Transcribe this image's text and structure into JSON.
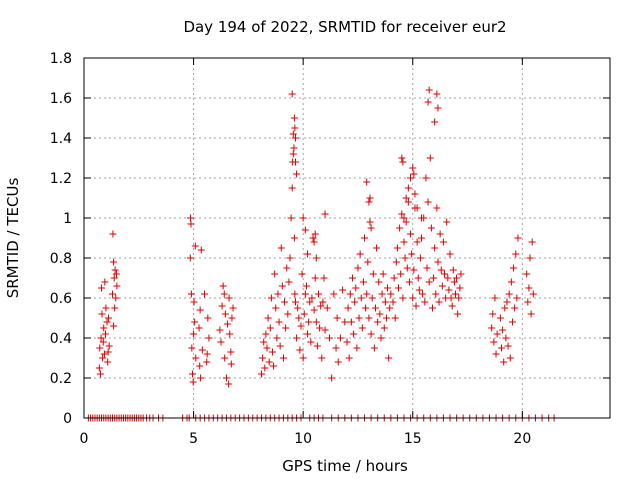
{
  "chart_data": {
    "type": "scatter",
    "title": "Day 194 of 2022, SRMTID for receiver eur2",
    "xlabel": "GPS time / hours",
    "ylabel": "SRMTID / TECUs",
    "xlim": [
      0,
      24
    ],
    "ylim": [
      0,
      1.8
    ],
    "xticks": [
      0,
      5,
      10,
      15,
      20
    ],
    "xtick_labels": [
      "0",
      "5",
      "10",
      "15",
      "20"
    ],
    "yticks": [
      0,
      0.2,
      0.4,
      0.6,
      0.8,
      1,
      1.2,
      1.4,
      1.6,
      1.8
    ],
    "ytick_labels": [
      "0",
      "0.2",
      "0.4",
      "0.6",
      "0.8",
      "1",
      "1.2",
      "1.4",
      "1.6",
      "1.8"
    ],
    "grid": true,
    "marker": "+",
    "color": "#e00000",
    "series": [
      {
        "name": "SRMTID",
        "x": [
          0.7,
          0.72,
          0.75,
          0.78,
          0.8,
          0.82,
          0.85,
          0.88,
          0.9,
          0.93,
          0.95,
          0.98,
          1.0,
          1.05,
          1.08,
          1.1,
          1.12,
          1.15,
          1.3,
          1.32,
          1.35,
          1.38,
          1.4,
          1.42,
          1.45,
          1.48,
          1.5,
          1.35,
          4.85,
          4.86,
          4.88,
          4.9,
          4.92,
          4.95,
          4.98,
          5.0,
          5.02,
          5.05,
          5.08,
          5.1,
          5.25,
          5.28,
          5.3,
          5.32,
          5.35,
          5.4,
          5.5,
          5.6,
          5.62,
          5.65,
          5.7,
          6.2,
          6.25,
          6.3,
          6.35,
          6.4,
          6.42,
          6.45,
          6.5,
          6.55,
          6.6,
          6.62,
          6.65,
          6.7,
          6.72,
          6.75,
          6.8,
          8.1,
          8.15,
          8.2,
          8.25,
          8.3,
          8.35,
          8.4,
          8.45,
          8.5,
          8.55,
          8.6,
          8.65,
          8.7,
          8.75,
          8.8,
          8.85,
          8.9,
          8.95,
          9.0,
          9.05,
          9.1,
          9.15,
          9.2,
          9.25,
          9.3,
          9.35,
          9.4,
          9.45,
          9.5,
          9.52,
          9.55,
          9.58,
          9.6,
          9.62,
          9.65,
          9.7,
          9.75,
          9.8,
          9.85,
          9.9,
          9.95,
          10.0,
          10.05,
          10.1,
          10.15,
          10.2,
          10.25,
          10.3,
          10.35,
          10.4,
          10.45,
          10.5,
          10.55,
          10.6,
          10.65,
          10.7,
          10.75,
          10.8,
          10.85,
          10.9,
          10.95,
          11.0,
          11.1,
          11.2,
          11.3,
          11.4,
          11.5,
          11.55,
          11.6,
          11.7,
          11.8,
          11.9,
          12.0,
          12.05,
          12.1,
          12.15,
          12.2,
          12.25,
          12.3,
          12.35,
          12.4,
          12.45,
          12.5,
          12.55,
          12.6,
          12.65,
          12.7,
          12.75,
          12.8,
          12.85,
          12.9,
          12.95,
          13.0,
          13.05,
          13.1,
          13.15,
          13.2,
          13.25,
          13.3,
          13.35,
          13.4,
          13.45,
          13.5,
          13.55,
          13.6,
          13.65,
          13.7,
          13.75,
          13.8,
          13.85,
          13.9,
          13.95,
          14.0,
          14.1,
          14.15,
          14.2,
          14.25,
          14.3,
          14.35,
          14.4,
          14.45,
          14.5,
          14.55,
          14.6,
          14.65,
          14.7,
          14.75,
          14.8,
          14.85,
          14.9,
          14.95,
          15.0,
          15.05,
          15.1,
          15.15,
          15.2,
          15.25,
          15.3,
          15.35,
          15.4,
          15.45,
          15.5,
          15.55,
          15.6,
          15.65,
          15.7,
          15.75,
          15.8,
          15.85,
          15.9,
          15.95,
          16.0,
          16.05,
          16.1,
          16.15,
          16.2,
          16.25,
          16.3,
          16.35,
          16.4,
          16.45,
          16.5,
          16.55,
          16.6,
          16.65,
          16.7,
          16.75,
          16.8,
          16.85,
          16.9,
          16.95,
          17.0,
          17.05,
          17.1,
          17.15,
          17.2,
          18.6,
          18.65,
          18.7,
          18.75,
          18.8,
          18.85,
          19.0,
          19.05,
          19.1,
          19.15,
          19.2,
          19.25,
          19.3,
          19.35,
          19.4,
          19.45,
          19.5,
          19.55,
          19.6,
          19.65,
          19.7,
          19.75,
          19.8,
          20.2,
          20.25,
          20.3,
          20.35,
          20.4,
          20.45,
          20.5,
          9.5,
          9.6,
          9.62,
          9.65,
          9.55,
          15.7,
          15.75,
          16.0,
          16.1,
          16.15,
          14.5,
          14.55,
          14.6,
          14.7,
          14.8,
          14.9,
          15.0,
          15.05,
          15.1,
          15.2,
          15.4,
          12.9,
          13.0,
          13.05,
          13.1,
          11.0,
          10.0,
          10.1,
          10.2,
          10.5,
          10.55,
          10.6,
          9.65,
          9.7
        ],
        "y": [
          0.25,
          0.35,
          0.22,
          0.4,
          0.65,
          0.52,
          0.3,
          0.38,
          0.45,
          0.32,
          0.68,
          0.42,
          0.55,
          0.48,
          0.28,
          0.33,
          0.5,
          0.36,
          0.62,
          0.92,
          0.78,
          0.7,
          0.55,
          0.74,
          0.6,
          0.72,
          0.66,
          0.46,
          0.8,
          1.0,
          0.97,
          0.62,
          0.35,
          0.22,
          0.18,
          0.42,
          0.58,
          0.48,
          0.86,
          0.3,
          0.45,
          0.26,
          0.54,
          0.2,
          0.84,
          0.34,
          0.62,
          0.28,
          0.32,
          0.5,
          0.4,
          0.44,
          0.38,
          0.56,
          0.66,
          0.62,
          0.3,
          0.52,
          0.2,
          0.47,
          0.17,
          0.6,
          0.42,
          0.33,
          0.27,
          0.5,
          0.55,
          0.22,
          0.3,
          0.38,
          0.25,
          0.42,
          0.35,
          0.5,
          0.28,
          0.45,
          0.6,
          0.33,
          0.26,
          0.72,
          0.55,
          0.4,
          0.62,
          0.48,
          0.36,
          0.85,
          0.66,
          0.3,
          0.58,
          0.45,
          0.75,
          0.52,
          0.68,
          0.8,
          1.0,
          1.15,
          1.28,
          1.42,
          1.35,
          0.9,
          0.62,
          0.58,
          0.4,
          0.55,
          0.5,
          0.34,
          0.46,
          0.72,
          0.3,
          0.52,
          0.62,
          0.66,
          0.42,
          0.48,
          0.58,
          0.38,
          0.6,
          0.9,
          0.54,
          0.7,
          0.48,
          0.36,
          0.62,
          0.45,
          0.56,
          0.3,
          0.58,
          0.7,
          0.44,
          0.55,
          0.4,
          0.2,
          0.62,
          0.35,
          0.5,
          0.28,
          0.4,
          0.64,
          0.48,
          0.38,
          0.55,
          0.3,
          0.62,
          0.48,
          0.7,
          0.42,
          0.58,
          0.65,
          0.35,
          0.75,
          0.5,
          0.82,
          0.6,
          0.45,
          0.68,
          0.9,
          0.55,
          0.62,
          0.78,
          0.5,
          1.1,
          0.42,
          0.6,
          0.72,
          0.35,
          0.55,
          0.85,
          0.48,
          0.68,
          0.52,
          0.4,
          0.62,
          0.72,
          0.45,
          0.58,
          0.5,
          0.65,
          0.3,
          0.55,
          0.62,
          0.58,
          0.7,
          0.5,
          0.78,
          0.85,
          0.65,
          0.95,
          0.72,
          1.02,
          0.6,
          0.88,
          0.8,
          0.98,
          0.75,
          1.08,
          0.68,
          0.92,
          0.82,
          0.6,
          0.74,
          1.05,
          0.56,
          0.88,
          0.7,
          0.64,
          0.8,
          0.9,
          0.62,
          1.0,
          0.58,
          1.2,
          0.75,
          1.08,
          0.68,
          1.3,
          0.95,
          0.55,
          0.7,
          0.85,
          0.62,
          1.05,
          0.78,
          0.58,
          0.92,
          0.74,
          0.66,
          0.88,
          0.72,
          0.6,
          0.98,
          0.7,
          0.64,
          0.82,
          0.6,
          0.56,
          0.74,
          0.68,
          0.62,
          0.7,
          0.52,
          0.6,
          0.65,
          0.72,
          0.45,
          0.52,
          0.38,
          0.6,
          0.32,
          0.42,
          0.5,
          0.35,
          0.44,
          0.28,
          0.55,
          0.4,
          0.58,
          0.36,
          0.62,
          0.3,
          0.68,
          0.48,
          0.75,
          0.55,
          0.82,
          0.6,
          0.9,
          0.72,
          0.58,
          0.65,
          0.8,
          0.52,
          0.88,
          0.62,
          1.62,
          1.5,
          1.45,
          1.28,
          1.32,
          1.58,
          1.64,
          1.48,
          1.62,
          1.55,
          1.3,
          1.28,
          1.0,
          1.1,
          1.15,
          1.2,
          1.25,
          1.22,
          1.12,
          1.05,
          1.0,
          1.18,
          1.08,
          0.98,
          0.95,
          1.02,
          1.0,
          0.94,
          0.82,
          0.88,
          0.92,
          0.8,
          1.4,
          1.22
        ],
        "zero_x": [
          0.2,
          0.3,
          0.4,
          0.5,
          0.6,
          0.7,
          0.8,
          0.9,
          1.0,
          1.1,
          1.2,
          1.3,
          1.4,
          1.5,
          1.6,
          1.7,
          1.8,
          1.9,
          2.0,
          2.1,
          2.2,
          2.3,
          2.4,
          2.5,
          2.6,
          2.7,
          2.85,
          3.0,
          3.15,
          3.4,
          3.6,
          4.5,
          4.7,
          4.8,
          5.1,
          5.3,
          5.5,
          5.7,
          5.9,
          6.1,
          6.3,
          6.5,
          6.7,
          6.9,
          7.1,
          7.3,
          7.5,
          7.7,
          7.9,
          8.1,
          8.3,
          8.5,
          8.7,
          8.9,
          9.1,
          9.3,
          9.5,
          9.7,
          9.9,
          10.3,
          10.5,
          10.7,
          10.9,
          11.3,
          11.6,
          11.9,
          12.2,
          12.5,
          12.8,
          13.1,
          13.4,
          13.7,
          14.0,
          14.3,
          14.6,
          14.9,
          15.2,
          15.5,
          15.8,
          16.1,
          16.4,
          16.7,
          17.0,
          17.3,
          17.6,
          17.9,
          18.2,
          18.5,
          18.8,
          19.1,
          19.4,
          19.7,
          20.0,
          20.3,
          20.6,
          20.9,
          21.2,
          21.45
        ]
      }
    ]
  }
}
